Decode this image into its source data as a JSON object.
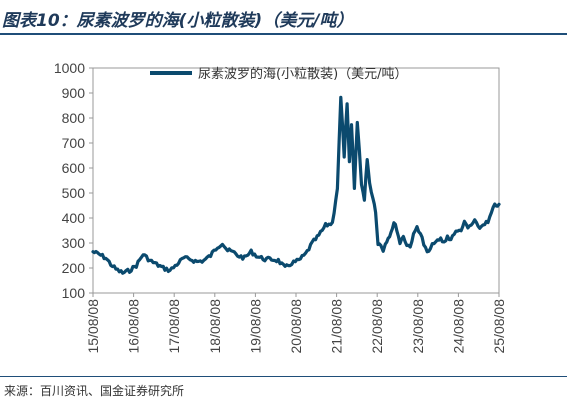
{
  "figure": {
    "title": "图表10：尿素波罗的海(小粒散装)（美元/吨）",
    "source": "来源：百川资讯、国金证券研究所"
  },
  "colors": {
    "line": "#0b4a6e",
    "title": "#1f3a5a",
    "rule": "#1f4e79"
  },
  "chart_data": {
    "type": "line",
    "ylim": [
      100,
      1000
    ],
    "yticks": [
      100,
      200,
      300,
      400,
      500,
      600,
      700,
      800,
      900,
      1000
    ],
    "ytick_labels": [
      "100",
      "200",
      "300",
      "400",
      "500",
      "600",
      "700",
      "800",
      "900",
      "1000"
    ],
    "xlim": [
      "2015-08-08",
      "2025-08-08"
    ],
    "xtick_labels": [
      "15/08/08",
      "16/08/08",
      "17/08/08",
      "18/08/08",
      "19/08/08",
      "20/08/08",
      "21/08/08",
      "22/08/08",
      "23/08/08",
      "24/08/08",
      "25/08/08"
    ],
    "legend_position": "top",
    "grid": false,
    "series": [
      {
        "name": "尿素波罗的海(小粒散装)（美元/吨）",
        "x": [
          "2015-08-08",
          "2015-10-01",
          "2015-12-01",
          "2016-01-15",
          "2016-03-01",
          "2016-05-01",
          "2016-07-01",
          "2016-09-01",
          "2016-11-01",
          "2017-01-01",
          "2017-03-01",
          "2017-05-01",
          "2017-07-01",
          "2017-09-01",
          "2017-11-01",
          "2018-01-01",
          "2018-03-01",
          "2018-05-01",
          "2018-07-01",
          "2018-09-01",
          "2018-10-15",
          "2018-12-01",
          "2019-01-15",
          "2019-03-01",
          "2019-05-01",
          "2019-07-01",
          "2019-09-01",
          "2019-11-01",
          "2020-01-01",
          "2020-03-01",
          "2020-05-01",
          "2020-07-01",
          "2020-09-01",
          "2020-11-01",
          "2021-01-01",
          "2021-03-01",
          "2021-05-01",
          "2021-07-01",
          "2021-08-15",
          "2021-09-15",
          "2021-10-15",
          "2021-11-10",
          "2021-12-01",
          "2021-12-20",
          "2022-01-15",
          "2022-02-10",
          "2022-03-01",
          "2022-03-20",
          "2022-04-15",
          "2022-05-10",
          "2022-06-01",
          "2022-07-01",
          "2022-07-25",
          "2022-08-15",
          "2022-09-10",
          "2022-10-01",
          "2022-10-20",
          "2022-11-15",
          "2022-12-10",
          "2023-01-05",
          "2023-02-01",
          "2023-03-01",
          "2023-04-01",
          "2023-05-01",
          "2023-06-01",
          "2023-07-01",
          "2023-08-01",
          "2023-09-01",
          "2023-10-01",
          "2023-11-01",
          "2023-12-01",
          "2024-01-01",
          "2024-02-01",
          "2024-03-01",
          "2024-04-01",
          "2024-05-01",
          "2024-06-01",
          "2024-07-01",
          "2024-08-01",
          "2024-09-01",
          "2024-10-01",
          "2024-11-01",
          "2024-12-01",
          "2025-01-01",
          "2025-02-01",
          "2025-03-01",
          "2025-04-01",
          "2025-05-01",
          "2025-06-01",
          "2025-07-01",
          "2025-08-08"
        ],
        "values": [
          265,
          255,
          240,
          215,
          195,
          180,
          190,
          210,
          255,
          230,
          215,
          200,
          190,
          215,
          240,
          235,
          225,
          230,
          250,
          285,
          300,
          270,
          265,
          250,
          240,
          265,
          245,
          235,
          235,
          230,
          200,
          220,
          230,
          255,
          300,
          330,
          370,
          380,
          520,
          880,
          650,
          850,
          620,
          770,
          520,
          780,
          670,
          540,
          470,
          640,
          540,
          480,
          430,
          300,
          290,
          270,
          300,
          320,
          345,
          380,
          355,
          300,
          330,
          290,
          290,
          330,
          365,
          340,
          295,
          260,
          275,
          305,
          305,
          315,
          300,
          325,
          315,
          340,
          345,
          355,
          380,
          360,
          370,
          390,
          360,
          365,
          380,
          380,
          420,
          450,
          455
        ]
      }
    ]
  }
}
